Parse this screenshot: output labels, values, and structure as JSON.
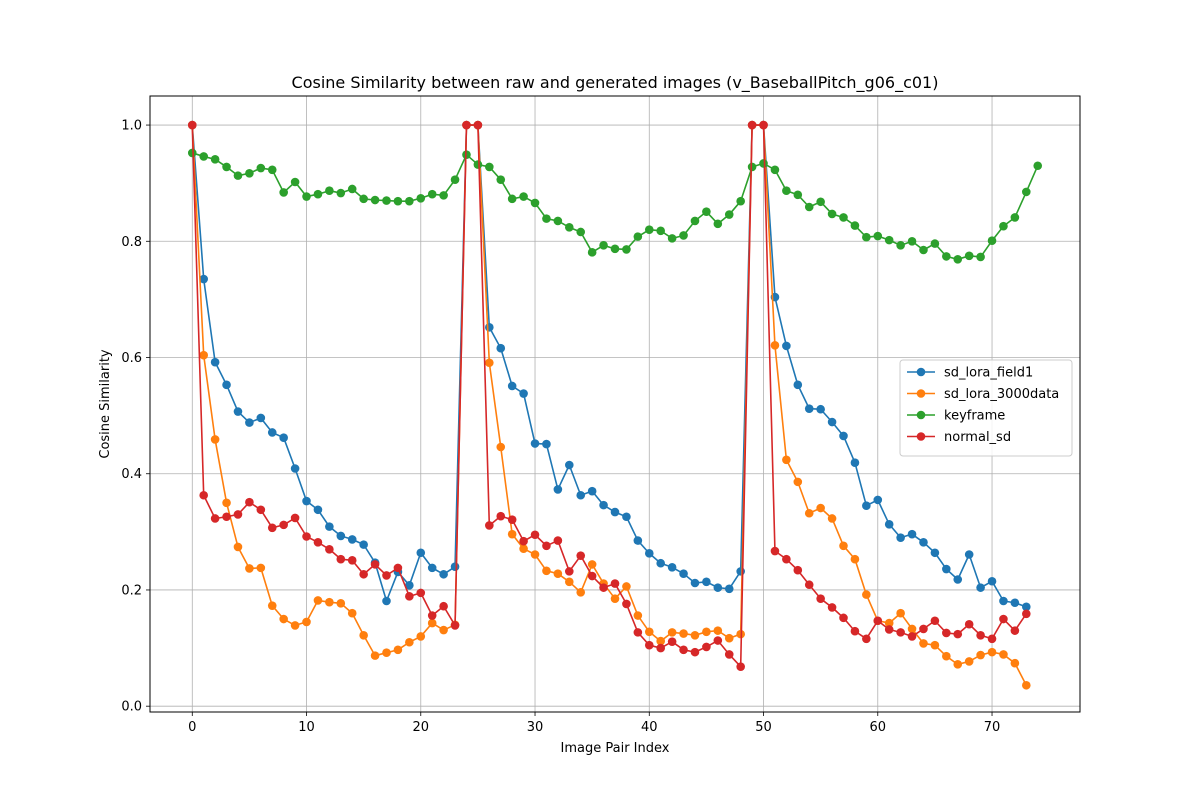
{
  "chart_data": {
    "type": "line",
    "title": "Cosine Similarity between raw and generated images (v_BaseballPitch_g06_c01)",
    "xlabel": "Image Pair Index",
    "ylabel": "Cosine Similarity",
    "xlim": [
      -3.7,
      77.7
    ],
    "ylim": [
      -0.01,
      1.05
    ],
    "xticks": [
      0,
      10,
      20,
      30,
      40,
      50,
      60,
      70
    ],
    "yticks": [
      0.0,
      0.2,
      0.4,
      0.6,
      0.8,
      1.0
    ],
    "ytick_labels": [
      "0.0",
      "0.2",
      "0.4",
      "0.6",
      "0.8",
      "1.0"
    ],
    "grid": true,
    "legend_position": "center-right",
    "series": [
      {
        "name": "sd_lora_field1",
        "color": "#1f77b4",
        "values": [
          1.0,
          0.735,
          0.592,
          0.553,
          0.507,
          0.488,
          0.496,
          0.471,
          0.462,
          0.409,
          0.353,
          0.338,
          0.309,
          0.293,
          0.287,
          0.278,
          0.247,
          0.181,
          0.231,
          0.208,
          0.264,
          0.238,
          0.227,
          0.24,
          1.0,
          1.0,
          0.652,
          0.616,
          0.551,
          0.538,
          0.452,
          0.451,
          0.373,
          0.415,
          0.363,
          0.37,
          0.346,
          0.334,
          0.326,
          0.285,
          0.263,
          0.246,
          0.239,
          0.228,
          0.212,
          0.214,
          0.204,
          0.202,
          0.232,
          1.0,
          1.0,
          0.704,
          0.62,
          0.553,
          0.512,
          0.511,
          0.489,
          0.465,
          0.419,
          0.345,
          0.355,
          0.313,
          0.29,
          0.296,
          0.282,
          0.264,
          0.236,
          0.218,
          0.261,
          0.204,
          0.215,
          0.181,
          0.178,
          0.171
        ]
      },
      {
        "name": "sd_lora_3000data",
        "color": "#ff7f0e",
        "values": [
          1.0,
          0.604,
          0.459,
          0.35,
          0.274,
          0.237,
          0.238,
          0.173,
          0.15,
          0.139,
          0.145,
          0.182,
          0.179,
          0.177,
          0.16,
          0.122,
          0.087,
          0.092,
          0.097,
          0.11,
          0.12,
          0.143,
          0.131,
          0.14,
          1.0,
          1.0,
          0.591,
          0.446,
          0.296,
          0.271,
          0.261,
          0.233,
          0.228,
          0.214,
          0.196,
          0.244,
          0.211,
          0.185,
          0.206,
          0.156,
          0.128,
          0.112,
          0.127,
          0.125,
          0.122,
          0.128,
          0.13,
          0.117,
          0.124,
          1.0,
          1.0,
          0.621,
          0.424,
          0.386,
          0.332,
          0.341,
          0.323,
          0.276,
          0.253,
          0.192,
          0.147,
          0.143,
          0.16,
          0.133,
          0.108,
          0.105,
          0.086,
          0.072,
          0.077,
          0.088,
          0.093,
          0.089,
          0.074,
          0.036
        ]
      },
      {
        "name": "keyframe",
        "color": "#2ca02c",
        "values": [
          0.952,
          0.946,
          0.941,
          0.928,
          0.913,
          0.917,
          0.926,
          0.923,
          0.884,
          0.902,
          0.877,
          0.881,
          0.887,
          0.883,
          0.89,
          0.873,
          0.871,
          0.87,
          0.869,
          0.869,
          0.874,
          0.881,
          0.879,
          0.906,
          0.949,
          0.932,
          0.928,
          0.906,
          0.873,
          0.877,
          0.866,
          0.839,
          0.835,
          0.824,
          0.816,
          0.781,
          0.793,
          0.787,
          0.786,
          0.808,
          0.82,
          0.818,
          0.805,
          0.81,
          0.835,
          0.851,
          0.83,
          0.846,
          0.869,
          0.928,
          0.934,
          0.923,
          0.887,
          0.88,
          0.859,
          0.868,
          0.847,
          0.841,
          0.827,
          0.807,
          0.809,
          0.802,
          0.793,
          0.8,
          0.785,
          0.796,
          0.774,
          0.769,
          0.775,
          0.773,
          0.801,
          0.826,
          0.841,
          0.885,
          0.93
        ]
      },
      {
        "name": "normal_sd",
        "color": "#d62728",
        "values": [
          1.0,
          0.363,
          0.323,
          0.326,
          0.33,
          0.351,
          0.338,
          0.307,
          0.312,
          0.324,
          0.292,
          0.282,
          0.27,
          0.253,
          0.251,
          0.227,
          0.244,
          0.225,
          0.238,
          0.189,
          0.195,
          0.156,
          0.172,
          0.139,
          1.0,
          1.0,
          0.311,
          0.327,
          0.321,
          0.284,
          0.295,
          0.276,
          0.285,
          0.232,
          0.259,
          0.224,
          0.204,
          0.211,
          0.176,
          0.127,
          0.105,
          0.1,
          0.111,
          0.097,
          0.093,
          0.102,
          0.113,
          0.089,
          0.068,
          1.0,
          1.0,
          0.267,
          0.253,
          0.234,
          0.209,
          0.185,
          0.17,
          0.152,
          0.129,
          0.116,
          0.147,
          0.132,
          0.127,
          0.12,
          0.133,
          0.147,
          0.126,
          0.124,
          0.141,
          0.122,
          0.116,
          0.15,
          0.13,
          0.159
        ]
      }
    ]
  }
}
